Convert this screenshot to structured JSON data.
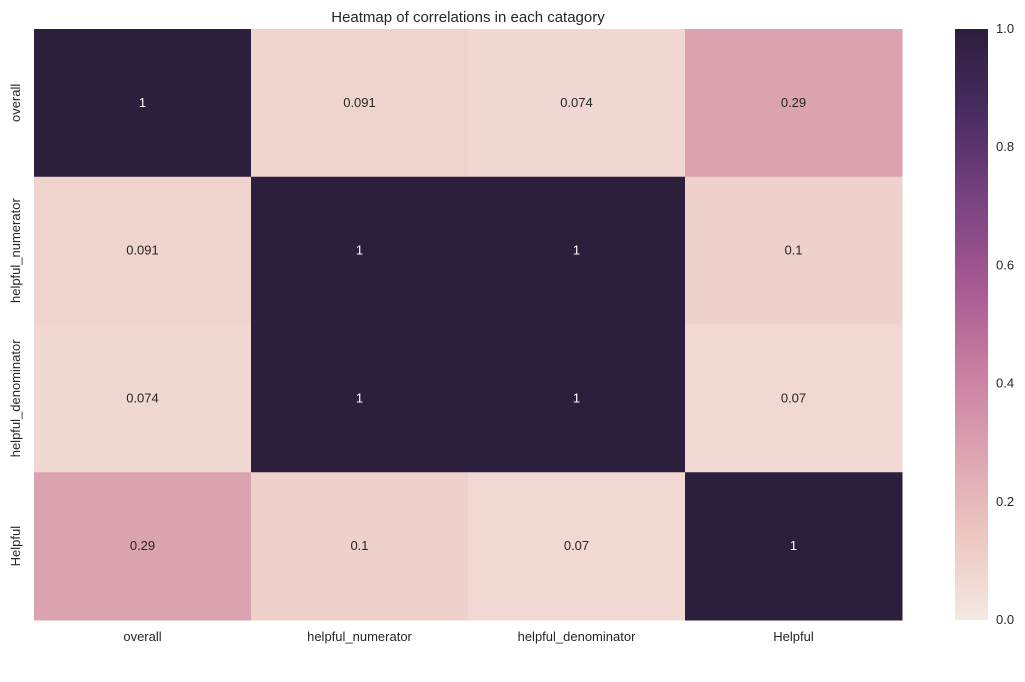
{
  "chart_data": {
    "type": "heatmap",
    "title": "Heatmap of correlations in each catagory",
    "x_categories": [
      "overall",
      "helpful_numerator",
      "helpful_denominator",
      "Helpful"
    ],
    "y_categories": [
      "overall",
      "helpful_numerator",
      "helpful_denominator",
      "Helpful"
    ],
    "values": [
      [
        1,
        0.091,
        0.074,
        0.29
      ],
      [
        0.091,
        1,
        1,
        0.1
      ],
      [
        0.074,
        1,
        1,
        0.07
      ],
      [
        0.29,
        0.1,
        0.07,
        1
      ]
    ],
    "annotations": [
      [
        "1",
        "0.091",
        "0.074",
        "0.29"
      ],
      [
        "0.091",
        "1",
        "1",
        "0.1"
      ],
      [
        "0.074",
        "1",
        "1",
        "0.07"
      ],
      [
        "0.29",
        "0.1",
        "0.07",
        "1"
      ]
    ],
    "colorbar": {
      "min": 0,
      "max": 1,
      "ticks": [
        0.0,
        0.2,
        0.4,
        0.6,
        0.8,
        1.0
      ],
      "tick_labels": [
        "0.0",
        "0.2",
        "0.4",
        "0.6",
        "0.8",
        "1.0"
      ],
      "placement": "right"
    },
    "colormap_stops": [
      "#f5e8e2",
      "#ecc7c1",
      "#dca3b0",
      "#c87c9f",
      "#a55891",
      "#774280",
      "#4a2c61",
      "#2c1e3d"
    ],
    "grid": false
  }
}
